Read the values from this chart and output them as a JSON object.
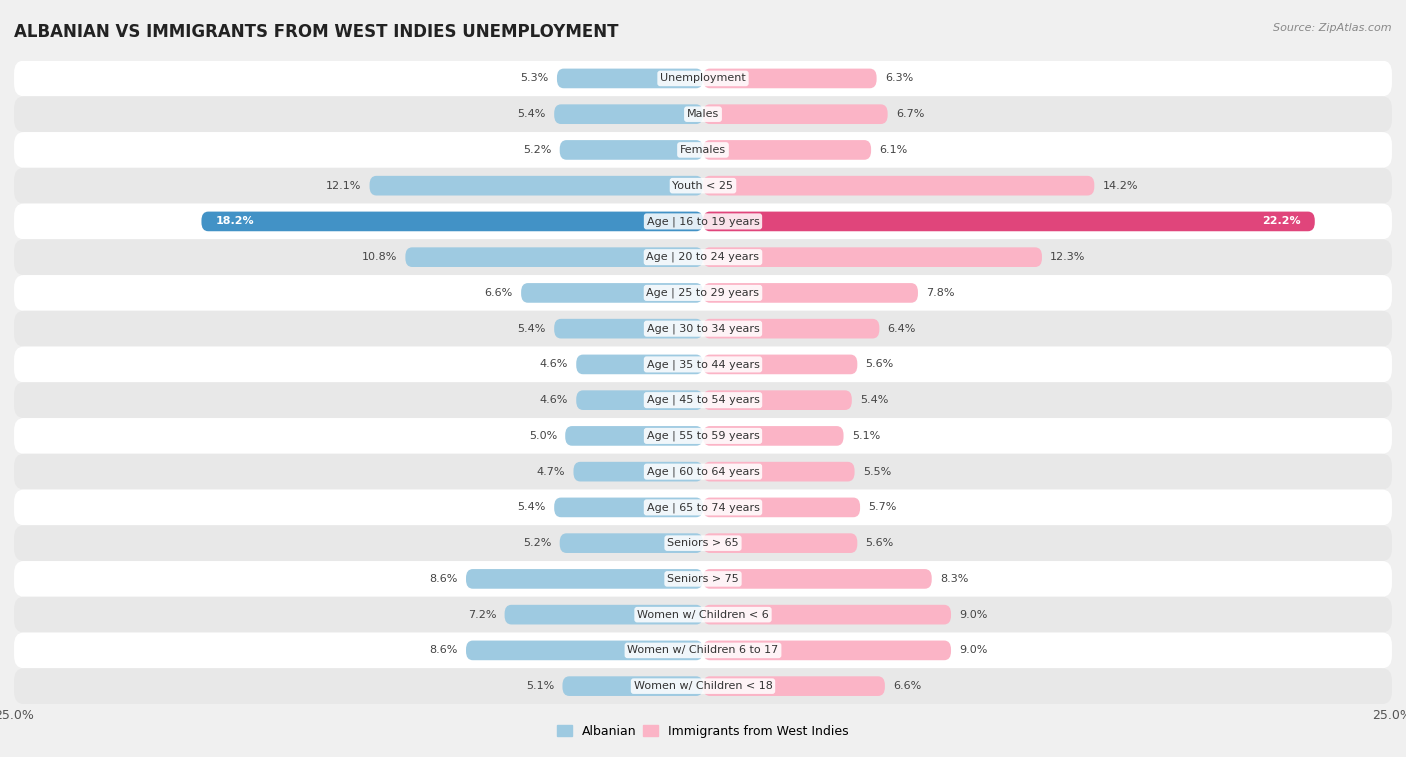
{
  "title": "ALBANIAN VS IMMIGRANTS FROM WEST INDIES UNEMPLOYMENT",
  "source": "Source: ZipAtlas.com",
  "categories": [
    "Unemployment",
    "Males",
    "Females",
    "Youth < 25",
    "Age | 16 to 19 years",
    "Age | 20 to 24 years",
    "Age | 25 to 29 years",
    "Age | 30 to 34 years",
    "Age | 35 to 44 years",
    "Age | 45 to 54 years",
    "Age | 55 to 59 years",
    "Age | 60 to 64 years",
    "Age | 65 to 74 years",
    "Seniors > 65",
    "Seniors > 75",
    "Women w/ Children < 6",
    "Women w/ Children 6 to 17",
    "Women w/ Children < 18"
  ],
  "albanian": [
    5.3,
    5.4,
    5.2,
    12.1,
    18.2,
    10.8,
    6.6,
    5.4,
    4.6,
    4.6,
    5.0,
    4.7,
    5.4,
    5.2,
    8.6,
    7.2,
    8.6,
    5.1
  ],
  "west_indies": [
    6.3,
    6.7,
    6.1,
    14.2,
    22.2,
    12.3,
    7.8,
    6.4,
    5.6,
    5.4,
    5.1,
    5.5,
    5.7,
    5.6,
    8.3,
    9.0,
    9.0,
    6.6
  ],
  "albanian_color": "#9ecae1",
  "albanian_color_dark": "#4292c6",
  "west_indies_color": "#fbb4c6",
  "west_indies_color_dark": "#e0457b",
  "background_color": "#f0f0f0",
  "row_color_light": "#ffffff",
  "row_color_dark": "#e8e8e8",
  "max_val": 25.0,
  "bar_height": 0.55,
  "label_fontsize": 8.0,
  "title_fontsize": 12,
  "source_fontsize": 8
}
